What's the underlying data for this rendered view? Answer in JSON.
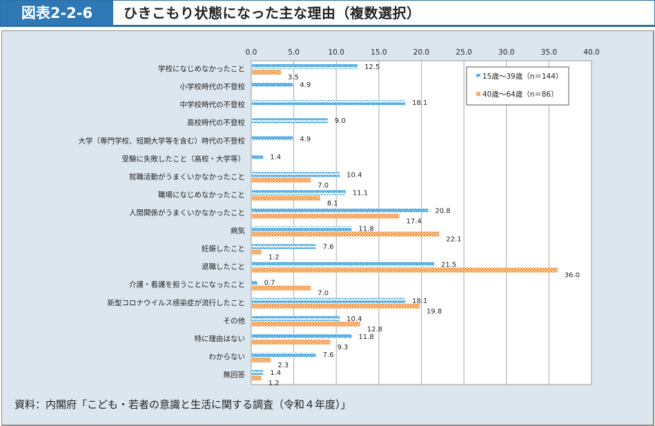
{
  "header": {
    "figure_number": "図表2-2-6",
    "title": "ひきこもり状態になった主な理由（複数選択）"
  },
  "colors": {
    "header_blue": "#2e78b5",
    "panel_bg": "#dbe6ee",
    "series1": "#2f9ad8",
    "series2": "#f08a2c"
  },
  "chart_data": {
    "type": "bar",
    "orientation": "horizontal",
    "title": "ひきこもり状態になった主な理由（複数選択）",
    "xlim": [
      0,
      40
    ],
    "xticks": [
      "0.0",
      "5.0",
      "10.0",
      "15.0",
      "20.0",
      "25.0",
      "30.0",
      "35.0",
      "40.0"
    ],
    "grid": true,
    "legend_position": "top-right",
    "categories": [
      "学校になじめなかったこと",
      "小学校時代の不登校",
      "中学校時代の不登校",
      "高校時代の不登校",
      "大学（専門学校、短期大学等を含む）時代の不登校",
      "受験に失敗したこと（高校・大学等）",
      "就職活動がうまくいかなかったこと",
      "職場になじめなかったこと",
      "人間関係がうまくいかなかったこと",
      "病気",
      "妊娠したこと",
      "退職したこと",
      "介護・看護を担うことになったこと",
      "新型コロナウイルス感染症が流行したこと",
      "その他",
      "特に理由はない",
      "わからない",
      "無回答"
    ],
    "series": [
      {
        "name": "15歳～39歳（n＝144）",
        "values": [
          12.5,
          4.9,
          18.1,
          9.0,
          4.9,
          1.4,
          10.4,
          11.1,
          20.8,
          11.8,
          7.6,
          21.5,
          0.7,
          18.1,
          10.4,
          11.8,
          7.6,
          1.4
        ],
        "labels": [
          "12.5",
          "4.9",
          "18.1",
          "9.0",
          "4.9",
          "1.4",
          "10.4",
          "11.1",
          "20.8",
          "11.8",
          "7.6",
          "21.5",
          "0.7",
          "18.1",
          "10.4",
          "11.8",
          "7.6",
          "1.4"
        ]
      },
      {
        "name": "40歳～64歳（n＝86）",
        "values": [
          3.5,
          null,
          null,
          null,
          null,
          null,
          7.0,
          8.1,
          17.4,
          22.1,
          1.2,
          36.0,
          7.0,
          19.8,
          12.8,
          9.3,
          2.3,
          1.2
        ],
        "labels": [
          "3.5",
          null,
          null,
          null,
          null,
          null,
          "7.0",
          "8.1",
          "17.4",
          "22.1",
          "1.2",
          "36.0",
          "7.0",
          "19.8",
          "12.8",
          "9.3",
          "2.3",
          "1.2"
        ]
      }
    ]
  },
  "source": "資料：内閣府「こども・若者の意識と生活に関する調査（令和４年度）」"
}
